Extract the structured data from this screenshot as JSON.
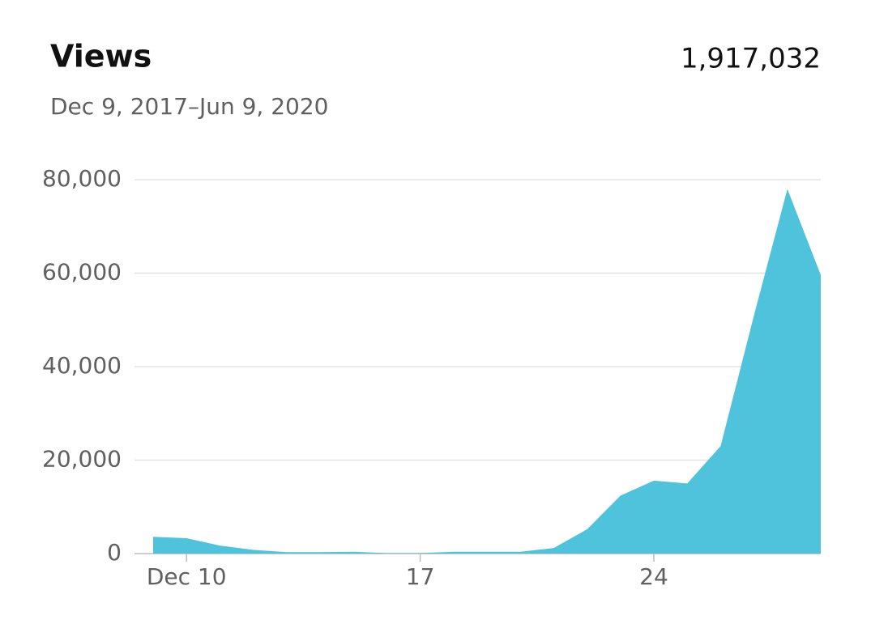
{
  "chart_data": {
    "type": "area",
    "title": "Views",
    "total": "1,917,032",
    "subtitle": "Dec 9, 2017–Jun 9, 2020",
    "categories": [
      null,
      "Dec 10",
      null,
      null,
      null,
      null,
      null,
      null,
      "17",
      null,
      null,
      null,
      null,
      null,
      null,
      "24",
      null,
      null,
      null,
      null,
      null
    ],
    "values": [
      3600,
      3300,
      1700,
      800,
      300,
      300,
      400,
      100,
      100,
      400,
      400,
      400,
      1200,
      5200,
      12400,
      15600,
      15000,
      23000,
      51000,
      78000,
      59600
    ],
    "color": "#4fc3dc",
    "ylim": [
      0,
      80000
    ],
    "yticks": [
      0,
      {
        "value": 20000,
        "label": "20,000"
      },
      {
        "value": 40000,
        "label": "40,000"
      },
      {
        "value": 60000,
        "label": "60,000"
      },
      {
        "value": 80000,
        "label": "80,000"
      }
    ],
    "grid": true
  }
}
